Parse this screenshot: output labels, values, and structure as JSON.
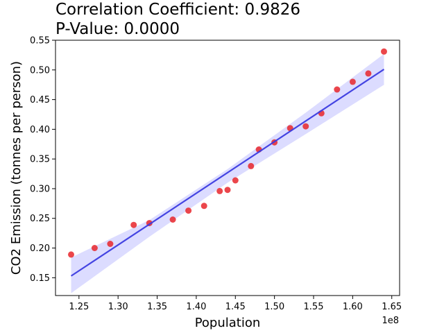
{
  "chart_data": {
    "type": "scatter",
    "title_lines": [
      "Correlation Coefficient: 0.9826",
      "P-Value: 0.0000"
    ],
    "xlabel": "Population",
    "ylabel": "CO2 Emission (tonnes per person)",
    "x_offset_label": "1e8",
    "xlim": [
      1.22,
      1.66
    ],
    "ylim": [
      0.12,
      0.55
    ],
    "xticks": [
      1.25,
      1.3,
      1.35,
      1.4,
      1.45,
      1.5,
      1.55,
      1.6,
      1.65
    ],
    "xtick_labels": [
      "1.25",
      "1.30",
      "1.35",
      "1.40",
      "1.45",
      "1.50",
      "1.55",
      "1.60",
      "1.65"
    ],
    "yticks": [
      0.15,
      0.2,
      0.25,
      0.3,
      0.35,
      0.4,
      0.45,
      0.5,
      0.55
    ],
    "ytick_labels": [
      "0.15",
      "0.20",
      "0.25",
      "0.30",
      "0.35",
      "0.40",
      "0.45",
      "0.50",
      "0.55"
    ],
    "grid": false,
    "points": {
      "x": [
        1.24,
        1.27,
        1.29,
        1.32,
        1.34,
        1.37,
        1.39,
        1.41,
        1.43,
        1.44,
        1.45,
        1.47,
        1.48,
        1.5,
        1.52,
        1.54,
        1.56,
        1.58,
        1.6,
        1.62,
        1.64
      ],
      "y": [
        0.189,
        0.2,
        0.207,
        0.239,
        0.242,
        0.248,
        0.263,
        0.271,
        0.296,
        0.298,
        0.314,
        0.338,
        0.366,
        0.378,
        0.402,
        0.405,
        0.427,
        0.467,
        0.48,
        0.494,
        0.531
      ],
      "color": "#e8262b"
    },
    "regression": {
      "x": [
        1.24,
        1.64
      ],
      "y": [
        0.153,
        0.501
      ],
      "color": "#3b3be0"
    },
    "confidence_band": {
      "x": [
        1.24,
        1.34,
        1.44,
        1.54,
        1.64
      ],
      "upper": [
        0.184,
        0.247,
        0.333,
        0.428,
        0.527
      ],
      "lower": [
        0.124,
        0.219,
        0.31,
        0.392,
        0.475
      ],
      "color": "#d8d8ff"
    }
  }
}
